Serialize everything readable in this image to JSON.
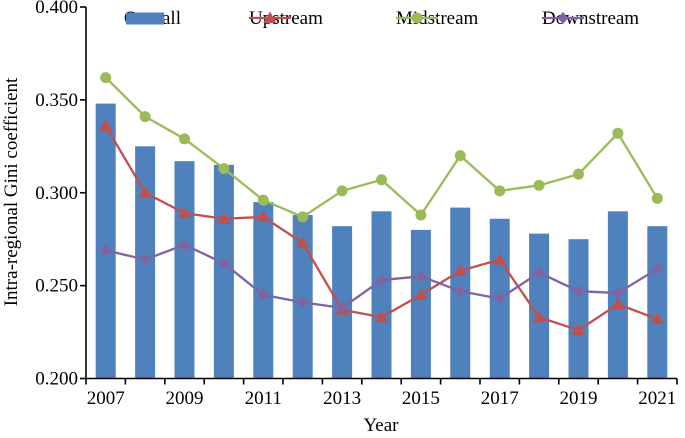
{
  "chart_data": {
    "type": "bar+line combo",
    "title": "",
    "xlabel": "Year",
    "ylabel": "Intra-regional Gini coefficient",
    "categories": [
      "2007",
      "2008",
      "2009",
      "2010",
      "2011",
      "2012",
      "2013",
      "2014",
      "2015",
      "2016",
      "2017",
      "2018",
      "2019",
      "2020",
      "2021"
    ],
    "x_tick_labels_shown": [
      "2007",
      "2009",
      "2011",
      "2013",
      "2015",
      "2017",
      "2019",
      "2021"
    ],
    "ylim": [
      0.2,
      0.4
    ],
    "y_ticks": [
      0.4,
      0.35,
      0.3,
      0.25,
      0.2
    ],
    "y_tick_labels": [
      "0.400",
      "0.350",
      "0.300",
      "0.250",
      "0.200"
    ],
    "grid": false,
    "legend_position": "top",
    "axis_color": "#000000",
    "series": [
      {
        "name": "Overall",
        "type": "bar",
        "marker": "rect",
        "color": "#4f81bd",
        "values": [
          0.348,
          0.325,
          0.317,
          0.315,
          0.295,
          0.288,
          0.282,
          0.29,
          0.28,
          0.292,
          0.286,
          0.278,
          0.275,
          0.29,
          0.282
        ]
      },
      {
        "name": "Upstream",
        "type": "line",
        "marker": "triangle",
        "color": "#c0504d",
        "values": [
          0.336,
          0.3,
          0.289,
          0.286,
          0.287,
          0.273,
          0.237,
          0.233,
          0.245,
          0.258,
          0.264,
          0.233,
          0.226,
          0.24,
          0.232
        ]
      },
      {
        "name": "Midstream",
        "type": "line",
        "marker": "circle",
        "color": "#9bbb59",
        "values": [
          0.362,
          0.341,
          0.329,
          0.313,
          0.296,
          0.287,
          0.301,
          0.307,
          0.288,
          0.32,
          0.301,
          0.304,
          0.31,
          0.332,
          0.297
        ]
      },
      {
        "name": "Downstream",
        "type": "line",
        "marker": "diamond",
        "color": "#8064a2",
        "values": [
          0.269,
          0.264,
          0.272,
          0.262,
          0.245,
          0.241,
          0.238,
          0.253,
          0.255,
          0.247,
          0.243,
          0.257,
          0.247,
          0.246,
          0.259
        ]
      }
    ]
  }
}
